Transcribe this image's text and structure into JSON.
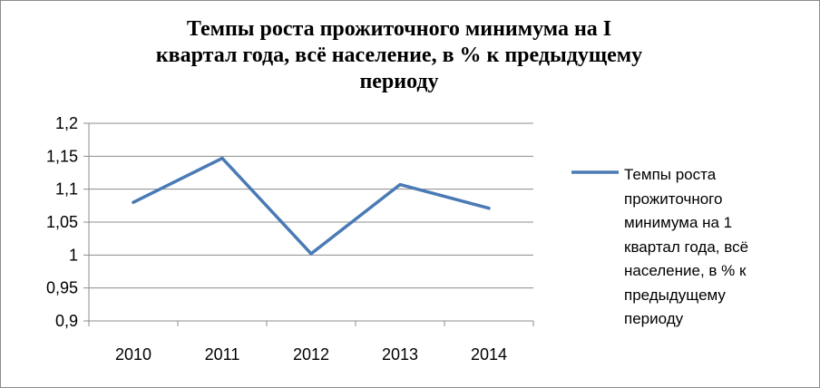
{
  "chart_data": {
    "type": "line",
    "title_lines": [
      "Темпы роста прожиточного минимума на I",
      "квартал года, всё население,  в % к предыдущему",
      "периоду"
    ],
    "categories": [
      "2010",
      "2011",
      "2012",
      "2013",
      "2014"
    ],
    "series": [
      {
        "name": "Темпы роста прожиточного минимума на 1 квартал года, всё население, в % к предыдущему периоду",
        "name_lines": [
          "Темпы роста",
          "прожиточного",
          "минимума на 1",
          "квартал года, всё",
          "население, в % к",
          "предыдущему",
          "периоду"
        ],
        "values": [
          1.08,
          1.147,
          1.002,
          1.107,
          1.071
        ],
        "color": "#4a7ab5"
      }
    ],
    "ylim": [
      0.9,
      1.2
    ],
    "yticks": [
      "0,9",
      "0,95",
      "1",
      "1,05",
      "1,1",
      "1,15",
      "1,2"
    ],
    "grid": true,
    "legend_position": "right"
  }
}
